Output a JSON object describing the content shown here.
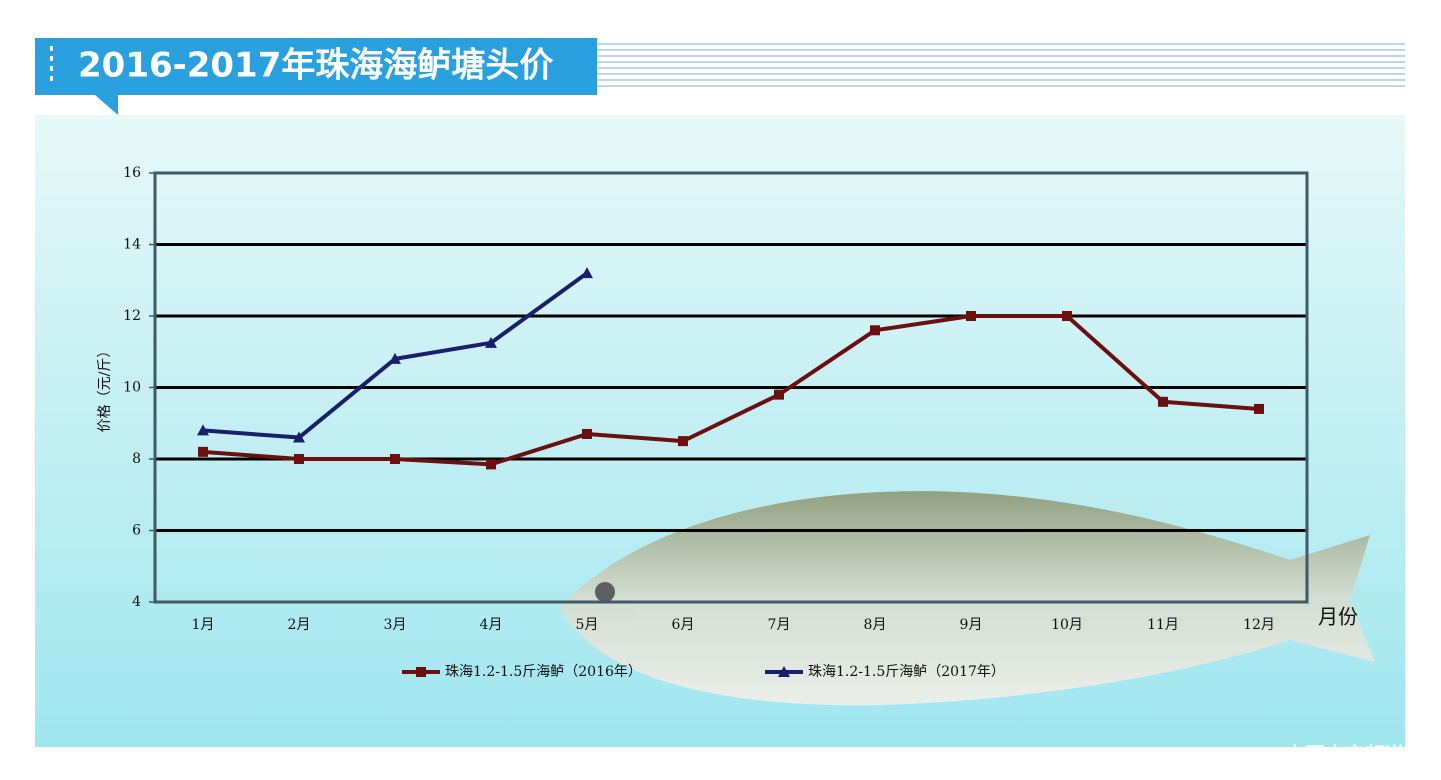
{
  "chart_data": {
    "type": "line",
    "title": "2016-2017年珠海海鲈塘头价",
    "y_label": "价格（元/斤）",
    "x_label": "月份",
    "watermark": "中国水产频道",
    "categories": [
      "1月",
      "2月",
      "3月",
      "4月",
      "5月",
      "6月",
      "7月",
      "8月",
      "9月",
      "10月",
      "11月",
      "12月"
    ],
    "series": [
      {
        "name": "珠海1.2-1.5斤海鲈（2016年）",
        "color": "#6b0f0f",
        "marker": "square",
        "values": [
          8.2,
          8.0,
          8.0,
          7.85,
          8.7,
          8.5,
          9.8,
          11.6,
          12.0,
          12.0,
          9.6,
          9.4
        ]
      },
      {
        "name": "珠海1.2-1.5斤海鲈（2017年）",
        "color": "#1a1f6b",
        "marker": "triangle",
        "values": [
          8.8,
          8.6,
          10.8,
          11.25,
          13.2,
          null,
          null,
          null,
          null,
          null,
          null,
          null
        ]
      }
    ],
    "ylim": [
      4,
      16
    ],
    "yticks": [
      4,
      6,
      8,
      10,
      12,
      14,
      16
    ],
    "grid": true
  }
}
